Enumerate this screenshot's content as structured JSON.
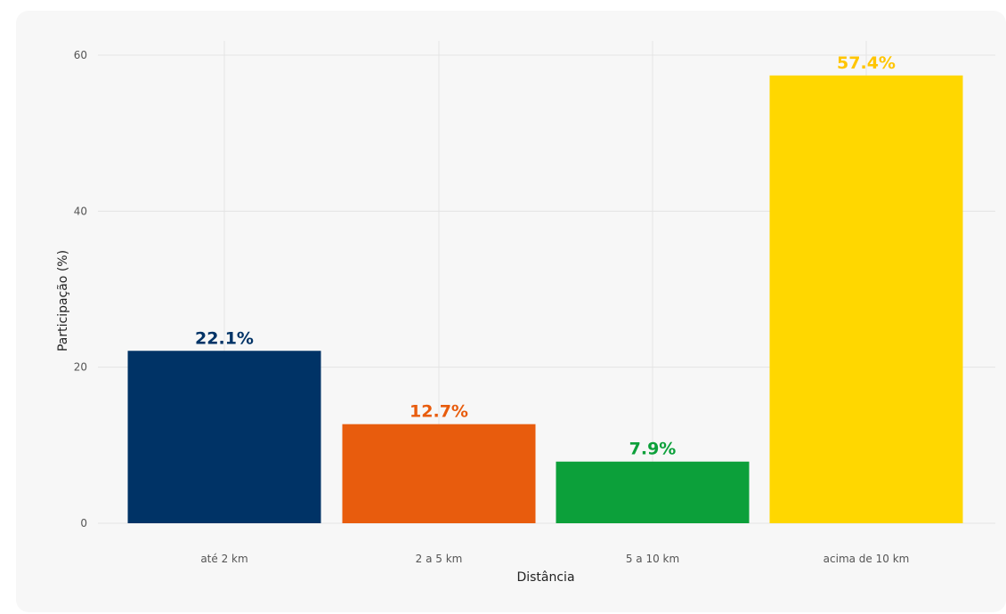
{
  "chart_data": {
    "type": "bar",
    "title": "",
    "xlabel": "Distância",
    "ylabel": "Participação (%)",
    "categories": [
      "até 2 km",
      "2 a 5 km",
      "5 a 10 km",
      "acima de 10 km"
    ],
    "values": [
      22.1,
      12.7,
      7.9,
      57.4
    ],
    "value_labels": [
      "22.1%",
      "12.7%",
      "7.9%",
      "57.4%"
    ],
    "bar_colors": [
      "#003366",
      "#e85c0d",
      "#0ca03a",
      "#ffd700"
    ],
    "label_colors": [
      "#003366",
      "#e85c0d",
      "#0ca03a",
      "#ffc500"
    ],
    "y_ticks": [
      0,
      20,
      40,
      60
    ],
    "ylim": [
      0,
      60
    ],
    "grid": true,
    "legend": "none"
  }
}
